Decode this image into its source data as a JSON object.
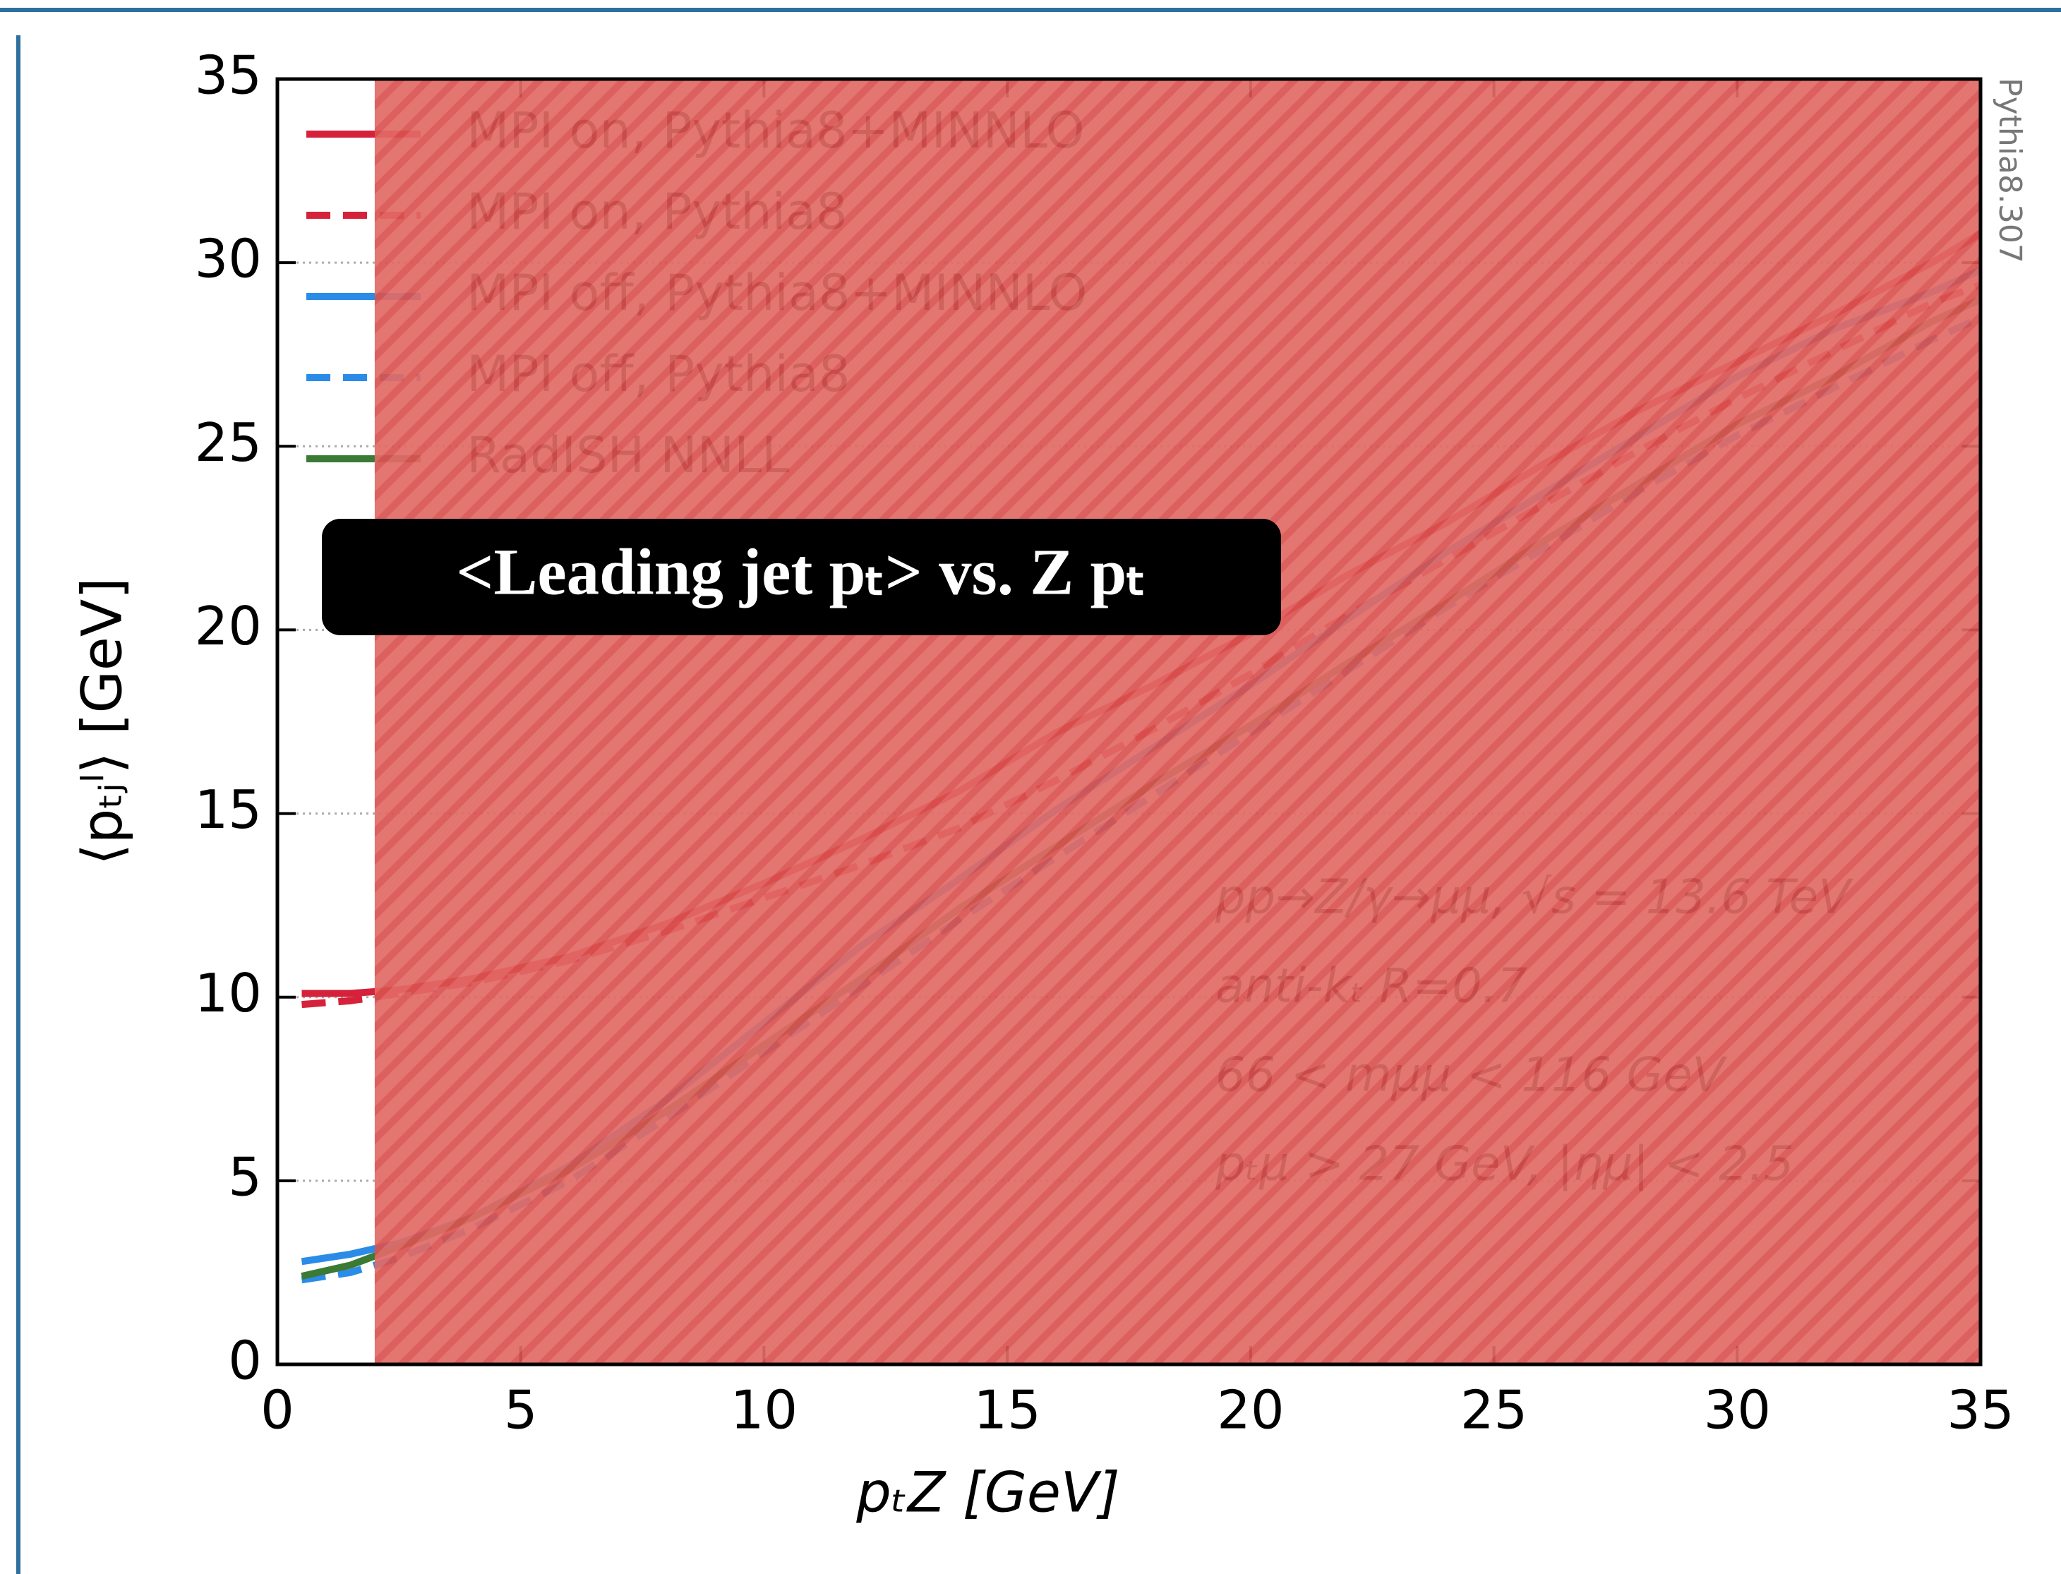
{
  "chart_data": {
    "type": "line",
    "title": "<Leading jet pₜ> vs. Z pₜ",
    "x_label": "pₜZ [GeV]",
    "y_label": "⟨pₜⱼˡ⟩ [GeV]",
    "side_label": "Pythia8.307",
    "annotations": [
      "pp→Z/γ→μμ, √s = 13.6 TeV",
      "anti-kₜ R=0.7",
      "66 < mμμ < 116 GeV",
      "pₜμ > 27 GeV, |ημ| < 2.5"
    ],
    "x": [
      0.5,
      1.5,
      2.5,
      4,
      6,
      8,
      10,
      12,
      14,
      16,
      18,
      20,
      22,
      24,
      26,
      28,
      30,
      32,
      34,
      35
    ],
    "series": [
      {
        "name": "MPI on, Pythia8+MINNLO",
        "color": "#d6213a",
        "style": "solid",
        "values": [
          10.1,
          10.1,
          10.2,
          10.5,
          11.1,
          12.0,
          13.1,
          14.3,
          15.6,
          17.2,
          18.5,
          19.9,
          21.5,
          22.9,
          24.5,
          26.0,
          27.3,
          28.6,
          30.0,
          30.8
        ]
      },
      {
        "name": "MPI on, Pythia8",
        "color": "#d6213a",
        "style": "dashed",
        "values": [
          9.8,
          9.9,
          10.1,
          10.4,
          11.0,
          11.8,
          12.7,
          13.6,
          14.6,
          15.9,
          17.3,
          18.8,
          20.4,
          21.9,
          23.4,
          24.9,
          26.3,
          27.6,
          28.9,
          29.4
        ]
      },
      {
        "name": "MPI off, Pythia8+MINNLO",
        "color": "#2b8ce8",
        "style": "solid",
        "values": [
          2.8,
          3.0,
          3.3,
          4.0,
          5.4,
          7.2,
          9.3,
          11.4,
          13.2,
          15.1,
          16.8,
          18.5,
          20.3,
          22.1,
          23.7,
          25.3,
          26.9,
          28.2,
          29.2,
          29.8
        ]
      },
      {
        "name": "MPI off, Pythia8",
        "color": "#2b8ce8",
        "style": "dashed",
        "values": [
          2.3,
          2.5,
          2.9,
          3.7,
          5.0,
          6.7,
          8.5,
          10.3,
          12.1,
          13.8,
          15.5,
          17.2,
          18.9,
          20.6,
          22.2,
          23.8,
          25.3,
          26.6,
          27.9,
          28.5
        ]
      },
      {
        "name": "RadISH NNLL",
        "color": "#3a7a35",
        "style": "solid",
        "values": [
          2.4,
          2.7,
          3.2,
          4.0,
          5.3,
          6.9,
          8.7,
          10.5,
          12.4,
          14.1,
          15.8,
          17.4,
          19.1,
          20.7,
          22.4,
          24.0,
          25.6,
          26.9,
          28.4,
          29.0
        ]
      }
    ],
    "xlim": [
      0,
      35
    ],
    "ylim": [
      0,
      35
    ],
    "xticks": [
      0,
      5,
      10,
      15,
      20,
      25,
      30,
      35
    ],
    "yticks": [
      0,
      5,
      10,
      15,
      20,
      25,
      30,
      35
    ],
    "grid": true,
    "legend": "upper left",
    "highlight_region": [
      2,
      35
    ]
  }
}
